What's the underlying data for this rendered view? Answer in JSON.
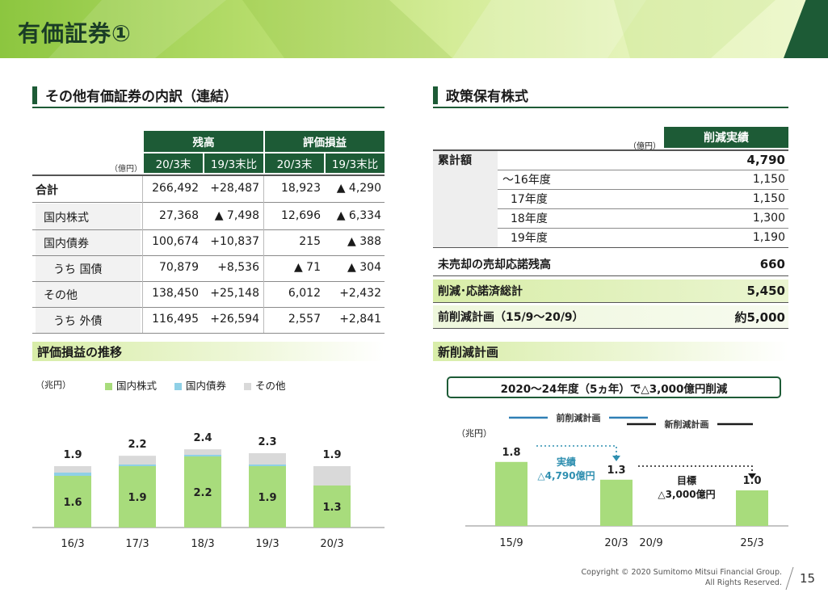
{
  "page": {
    "title": "有価証券①",
    "number": "15"
  },
  "left_section": {
    "title": "その他有価証券の内訳（連結）",
    "unit": "（億円）",
    "group_headers": [
      "残高",
      "評価損益"
    ],
    "col_headers": [
      "20/3末",
      "19/3末比",
      "20/3末",
      "19/3末比"
    ],
    "rows": [
      {
        "label": "合計",
        "values": [
          "266,492",
          "+28,487",
          "18,923",
          "▲ 4,290"
        ]
      },
      {
        "label": "国内株式",
        "values": [
          "27,368",
          "▲ 7,498",
          "12,696",
          "▲ 6,334"
        ]
      },
      {
        "label": "国内債券",
        "values": [
          "100,674",
          "+10,837",
          "215",
          "▲ 388"
        ]
      },
      {
        "label": "うち 国債",
        "values": [
          "70,879",
          "+8,536",
          "▲ 71",
          "▲ 304"
        ]
      },
      {
        "label": "その他",
        "values": [
          "138,450",
          "+25,148",
          "6,012",
          "+2,432"
        ]
      },
      {
        "label": "うち 外債",
        "values": [
          "116,495",
          "+26,594",
          "2,557",
          "+2,841"
        ]
      }
    ]
  },
  "right_section": {
    "title": "政策保有株式",
    "unit": "（億円）",
    "col_header": "削減実績",
    "rows": [
      {
        "label": "累計額",
        "value": "4,790"
      },
      {
        "label": "～16年度",
        "value": "1,150"
      },
      {
        "label": "17年度",
        "value": "1,150"
      },
      {
        "label": "18年度",
        "value": "1,300"
      },
      {
        "label": "19年度",
        "value": "1,190"
      },
      {
        "label": "未売却の売却応諾残高",
        "value": "660"
      },
      {
        "label": "削減･応諾済総計",
        "value": "5,450"
      },
      {
        "label": "前削減計画（15/9～20/9）",
        "value": "約5,000"
      }
    ]
  },
  "chart1": {
    "title": "評価損益の推移",
    "unit": "（兆円）",
    "legend": [
      "国内株式",
      "国内債券",
      "その他"
    ],
    "colors": {
      "stock": "#a8dc7c",
      "bond": "#8fd0e6",
      "other": "#d9d9d9"
    }
  },
  "chart_data": [
    {
      "type": "bar",
      "title": "評価損益の推移",
      "ylabel": "（兆円）",
      "categories": [
        "16/3",
        "17/3",
        "18/3",
        "19/3",
        "20/3"
      ],
      "series": [
        {
          "name": "国内株式",
          "values": [
            1.6,
            1.9,
            2.2,
            1.9,
            1.3
          ]
        },
        {
          "name": "国内債券",
          "values": [
            0.1,
            0.03,
            0.03,
            0.05,
            0.0
          ]
        },
        {
          "name": "その他",
          "values": [
            0.2,
            0.27,
            0.17,
            0.35,
            0.6
          ]
        }
      ],
      "totals": [
        "1.9",
        "2.2",
        "2.4",
        "2.3",
        "1.9"
      ],
      "stock_labels": [
        "1.6",
        "1.9",
        "2.2",
        "1.9",
        "1.3"
      ]
    },
    {
      "type": "bar",
      "title": "新削減計画",
      "ylabel": "（兆円）",
      "categories": [
        "15/9",
        "20/3",
        "25/3"
      ],
      "values": [
        1.8,
        1.3,
        1.0
      ],
      "value_labels": [
        "1.8",
        "1.3",
        "1.0"
      ]
    }
  ],
  "chart2": {
    "title": "新削減計画",
    "banner": "2020～24年度（5ヵ年）で△3,000億円削減",
    "unit": "（兆円）",
    "prev_plan": "前削減計画",
    "new_plan": "新削減計画",
    "actual_label": "実績",
    "actual_value": "△4,790億円",
    "target_label": "目標",
    "target_value": "△3,000億円",
    "extra_tick": "20/9",
    "color": "#a8dc7c"
  },
  "footer": {
    "line1": "Copyright © 2020 Sumitomo Mitsui Financial Group.",
    "line2": "All Rights Reserved."
  }
}
